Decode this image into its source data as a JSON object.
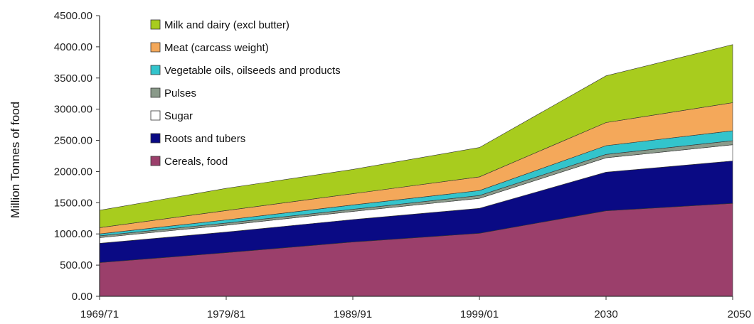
{
  "chart_data": {
    "type": "area",
    "stacked": true,
    "title": "",
    "xlabel": "",
    "ylabel": "Million Tonnes of food",
    "ylim": [
      0,
      4500
    ],
    "y_ticks": [
      "0.00",
      "500.00",
      "1000.00",
      "1500.00",
      "2000.00",
      "2500.00",
      "3000.00",
      "3500.00",
      "4000.00",
      "4500.00"
    ],
    "categories": [
      "1969/71",
      "1979/81",
      "1989/91",
      "1999/01",
      "2030",
      "2050"
    ],
    "grid": false,
    "legend_position": "top-left",
    "series": [
      {
        "name": "Cereals, food",
        "color": "#9b3f6b",
        "values": [
          540,
          700,
          870,
          1010,
          1370,
          1490
        ]
      },
      {
        "name": "Roots and tubers",
        "color": "#0a0a84",
        "values": [
          310,
          330,
          360,
          400,
          620,
          680
        ]
      },
      {
        "name": "Sugar",
        "color": "#ffffff",
        "values": [
          90,
          110,
          130,
          160,
          230,
          260
        ]
      },
      {
        "name": "Pulses",
        "color": "#8a9a8a",
        "values": [
          30,
          35,
          35,
          45,
          55,
          65
        ]
      },
      {
        "name": "Vegetable oils, oilseeds and products",
        "color": "#33c4cc",
        "values": [
          30,
          50,
          70,
          80,
          140,
          160
        ]
      },
      {
        "name": "Meat (carcass weight)",
        "color": "#f4a85a",
        "values": [
          100,
          150,
          180,
          220,
          370,
          450
        ]
      },
      {
        "name": "Milk and dairy (excl butter)",
        "color": "#a8cc1e",
        "values": [
          280,
          355,
          390,
          470,
          750,
          930
        ]
      }
    ]
  }
}
